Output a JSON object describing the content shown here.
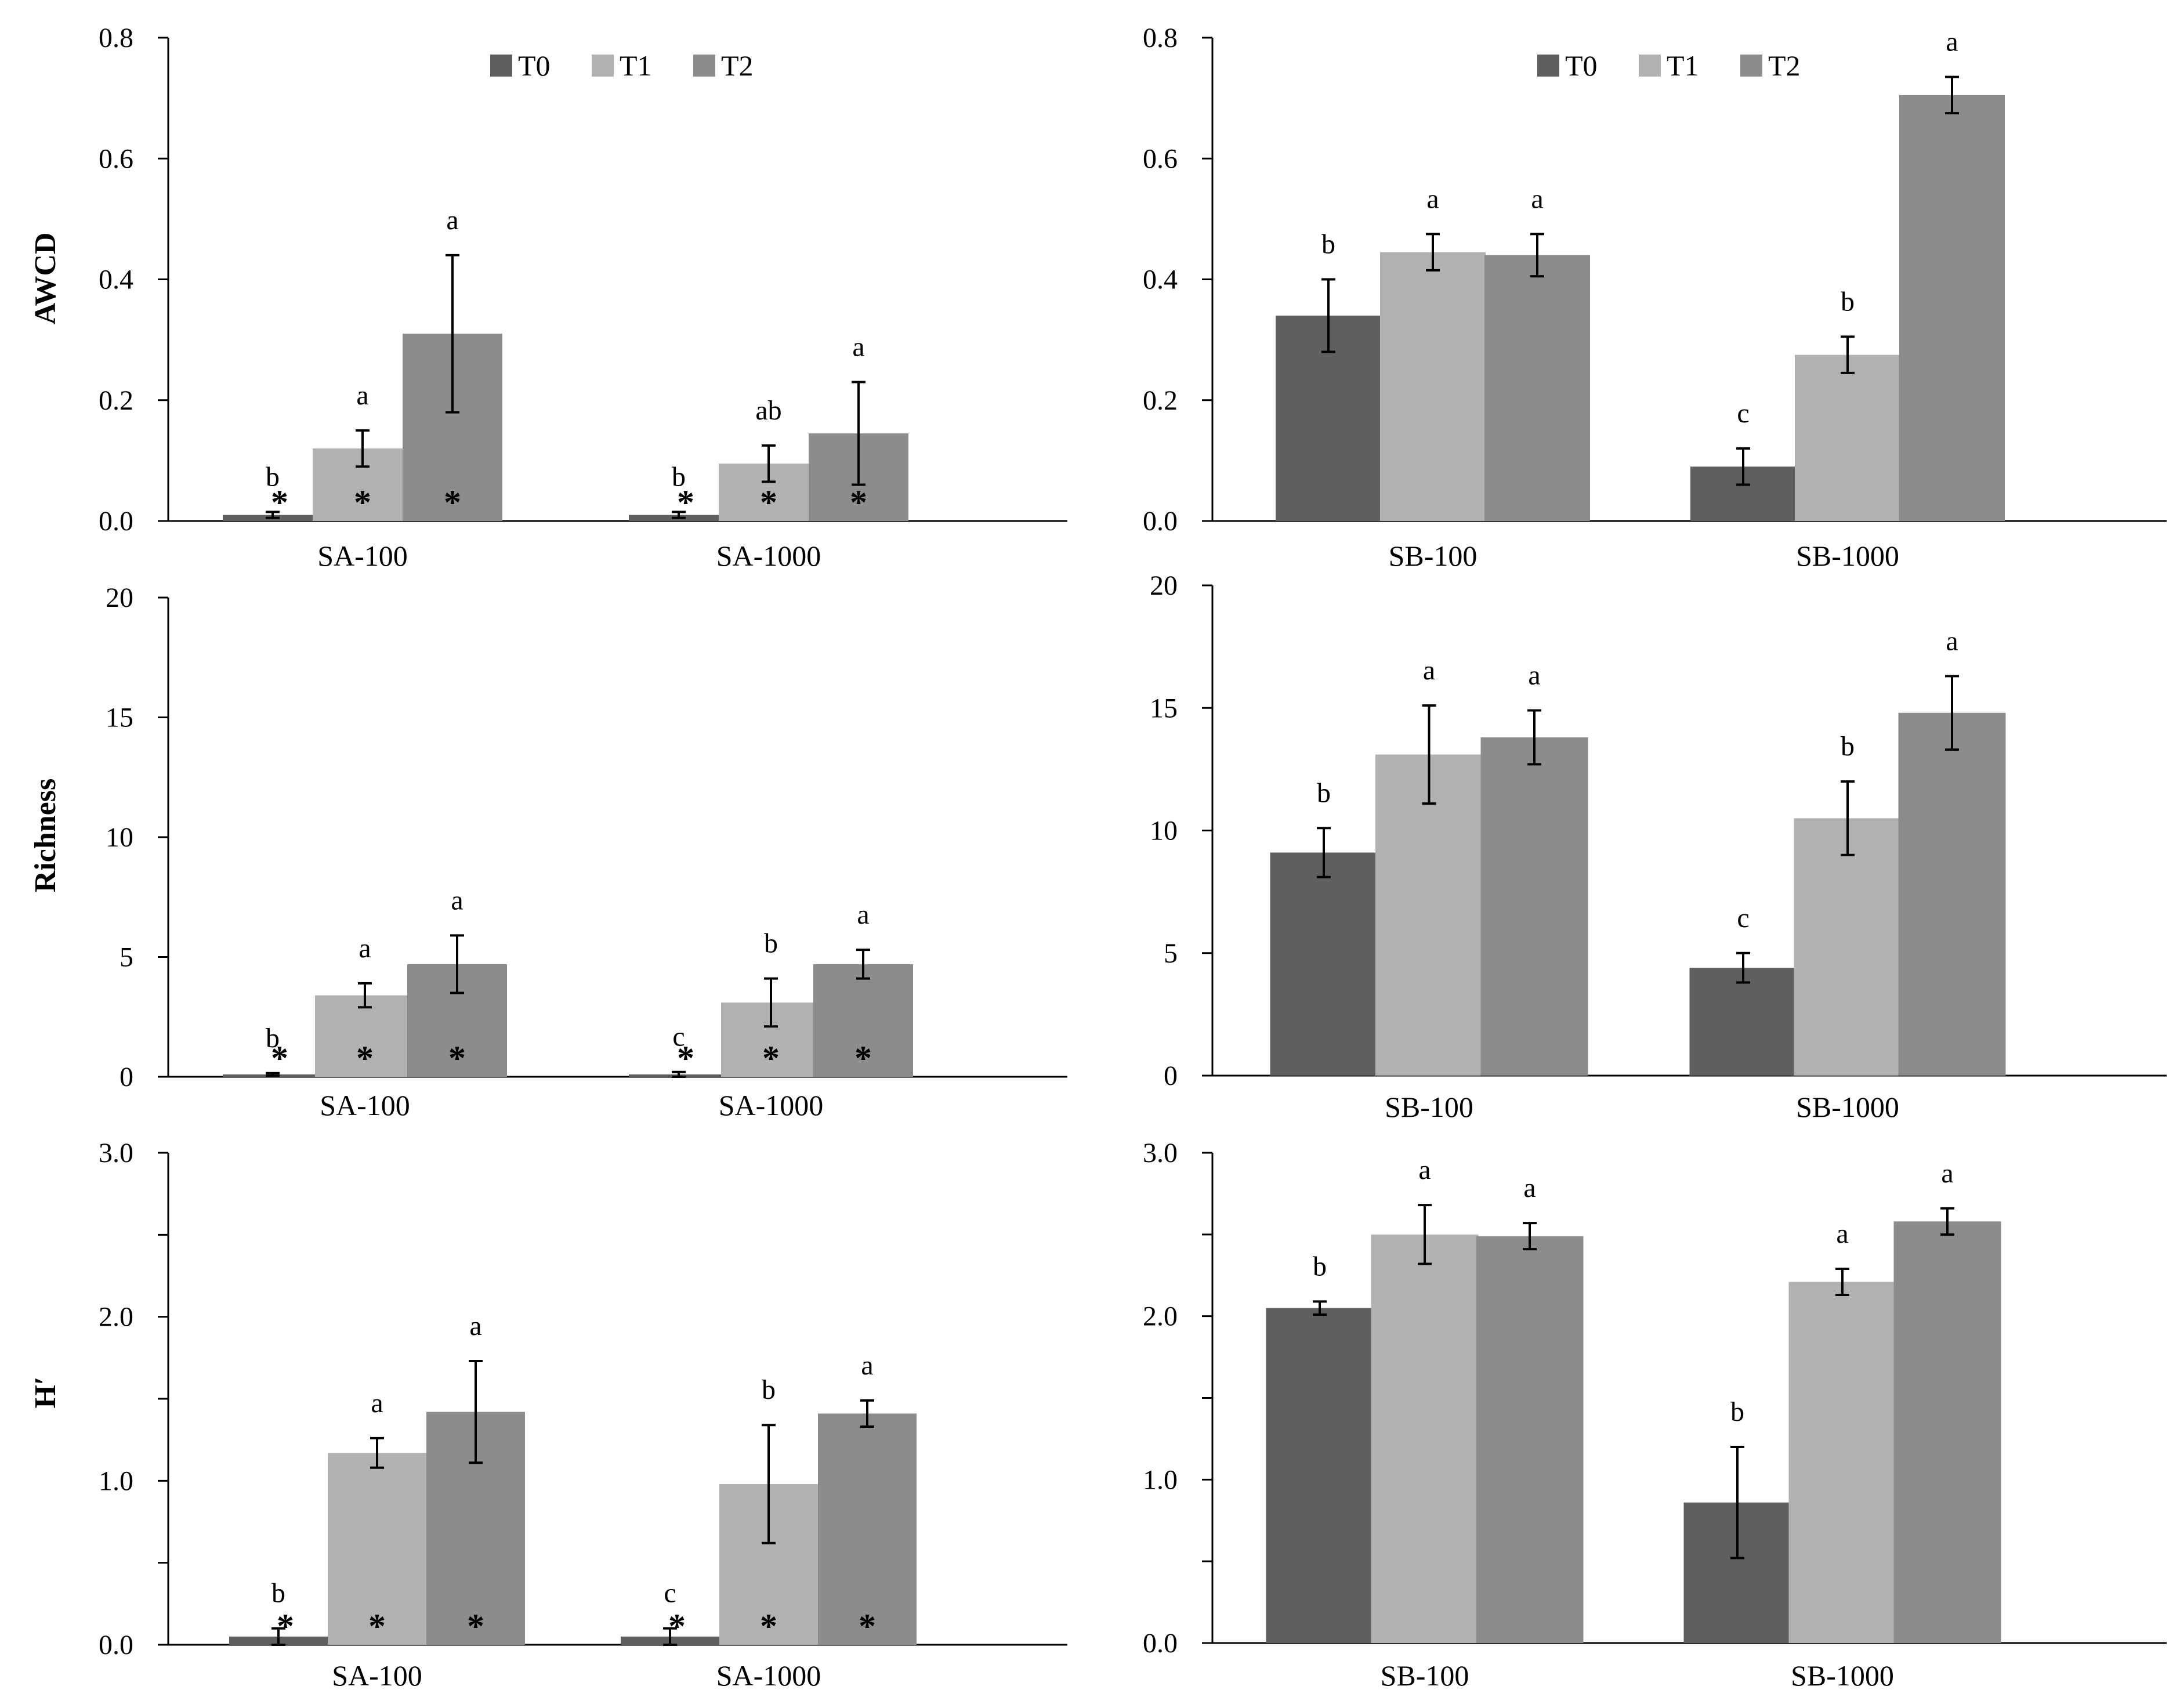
{
  "colors": {
    "T0": "#5f5f5f",
    "T1": "#b1b1b1",
    "T2": "#8c8c8c",
    "axis": "#000000",
    "error": "#000000"
  },
  "legend": [
    "T0",
    "T1",
    "T2"
  ],
  "chart_data": [
    {
      "id": "awcd-sa",
      "type": "bar",
      "ylabel": "AWCD",
      "ylim": [
        0,
        0.8
      ],
      "yticks": [
        "0.0",
        "0.2",
        "0.4",
        "0.6",
        "0.8"
      ],
      "legend": true,
      "categories": [
        "SA-100",
        "SA-1000"
      ],
      "series": [
        {
          "name": "T0",
          "values": [
            0.01,
            0.01
          ],
          "errors": [
            0.005,
            0.005
          ],
          "labels": [
            "b",
            "b"
          ],
          "stars": [
            true,
            true
          ]
        },
        {
          "name": "T1",
          "values": [
            0.12,
            0.095
          ],
          "errors": [
            0.03,
            0.03
          ],
          "labels": [
            "a",
            "ab"
          ],
          "stars": [
            true,
            true
          ]
        },
        {
          "name": "T2",
          "values": [
            0.31,
            0.145
          ],
          "errors": [
            0.13,
            0.085
          ],
          "labels": [
            "a",
            "a"
          ],
          "stars": [
            true,
            true
          ]
        }
      ]
    },
    {
      "id": "awcd-sb",
      "type": "bar",
      "ylabel": "",
      "ylim": [
        0,
        0.8
      ],
      "yticks": [
        "0.0",
        "0.2",
        "0.4",
        "0.6",
        "0.8"
      ],
      "legend": true,
      "categories": [
        "SB-100",
        "SB-1000"
      ],
      "series": [
        {
          "name": "T0",
          "values": [
            0.34,
            0.09
          ],
          "errors": [
            0.06,
            0.03
          ],
          "labels": [
            "b",
            "c"
          ],
          "stars": [
            false,
            false
          ]
        },
        {
          "name": "T1",
          "values": [
            0.445,
            0.275
          ],
          "errors": [
            0.03,
            0.03
          ],
          "labels": [
            "a",
            "b"
          ],
          "stars": [
            false,
            false
          ]
        },
        {
          "name": "T2",
          "values": [
            0.44,
            0.705
          ],
          "errors": [
            0.035,
            0.03
          ],
          "labels": [
            "a",
            "a"
          ],
          "stars": [
            false,
            false
          ]
        }
      ]
    },
    {
      "id": "rich-sa",
      "type": "bar",
      "ylabel": "Richness",
      "ylim": [
        0,
        20
      ],
      "yticks": [
        "0",
        "5",
        "10",
        "15",
        "20"
      ],
      "legend": false,
      "categories": [
        "SA-100",
        "SA-1000"
      ],
      "series": [
        {
          "name": "T0",
          "values": [
            0.1,
            0.1
          ],
          "errors": [
            0.05,
            0.1
          ],
          "labels": [
            "b",
            "c"
          ],
          "stars": [
            true,
            true
          ]
        },
        {
          "name": "T1",
          "values": [
            3.4,
            3.1
          ],
          "errors": [
            0.5,
            1.0
          ],
          "labels": [
            "a",
            "b"
          ],
          "stars": [
            true,
            true
          ]
        },
        {
          "name": "T2",
          "values": [
            4.7,
            4.7
          ],
          "errors": [
            1.2,
            0.6
          ],
          "labels": [
            "a",
            "a"
          ],
          "stars": [
            true,
            true
          ]
        }
      ]
    },
    {
      "id": "rich-sb",
      "type": "bar",
      "ylabel": "",
      "ylim": [
        0,
        20
      ],
      "yticks": [
        "0",
        "5",
        "10",
        "15",
        "20"
      ],
      "legend": false,
      "categories": [
        "SB-100",
        "SB-1000"
      ],
      "series": [
        {
          "name": "T0",
          "values": [
            9.1,
            4.4
          ],
          "errors": [
            1.0,
            0.6
          ],
          "labels": [
            "b",
            "c"
          ],
          "stars": [
            false,
            false
          ]
        },
        {
          "name": "T1",
          "values": [
            13.1,
            10.5
          ],
          "errors": [
            2.0,
            1.5
          ],
          "labels": [
            "a",
            "b"
          ],
          "stars": [
            false,
            false
          ]
        },
        {
          "name": "T2",
          "values": [
            13.8,
            14.8
          ],
          "errors": [
            1.1,
            1.5
          ],
          "labels": [
            "a",
            "a"
          ],
          "stars": [
            false,
            false
          ]
        }
      ]
    },
    {
      "id": "h-sa",
      "type": "bar",
      "ylabel": "H′",
      "ylim": [
        0,
        3.0
      ],
      "yticks": [
        "0.0",
        "",
        "1.0",
        "",
        "2.0",
        "",
        "3.0"
      ],
      "legend": false,
      "categories": [
        "SA-100",
        "SA-1000"
      ],
      "series": [
        {
          "name": "T0",
          "values": [
            0.05,
            0.05
          ],
          "errors": [
            0.05,
            0.05
          ],
          "labels": [
            "b",
            "c"
          ],
          "stars": [
            true,
            true
          ]
        },
        {
          "name": "T1",
          "values": [
            1.17,
            0.98
          ],
          "errors": [
            0.09,
            0.36
          ],
          "labels": [
            "a",
            "b"
          ],
          "stars": [
            true,
            true
          ]
        },
        {
          "name": "T2",
          "values": [
            1.42,
            1.41
          ],
          "errors": [
            0.31,
            0.08
          ],
          "labels": [
            "a",
            "a"
          ],
          "stars": [
            true,
            true
          ]
        }
      ]
    },
    {
      "id": "h-sb",
      "type": "bar",
      "ylabel": "",
      "ylim": [
        0,
        3.0
      ],
      "yticks": [
        "0.0",
        "",
        "1.0",
        "",
        "2.0",
        "",
        "3.0"
      ],
      "legend": false,
      "categories": [
        "SB-100",
        "SB-1000"
      ],
      "series": [
        {
          "name": "T0",
          "values": [
            2.05,
            0.86
          ],
          "errors": [
            0.04,
            0.34
          ],
          "labels": [
            "b",
            "b"
          ],
          "stars": [
            false,
            false
          ]
        },
        {
          "name": "T1",
          "values": [
            2.5,
            2.21
          ],
          "errors": [
            0.18,
            0.08
          ],
          "labels": [
            "a",
            "a"
          ],
          "stars": [
            false,
            false
          ]
        },
        {
          "name": "T2",
          "values": [
            2.49,
            2.58
          ],
          "errors": [
            0.08,
            0.08
          ],
          "labels": [
            "a",
            "a"
          ],
          "stars": [
            false,
            false
          ]
        }
      ]
    }
  ]
}
